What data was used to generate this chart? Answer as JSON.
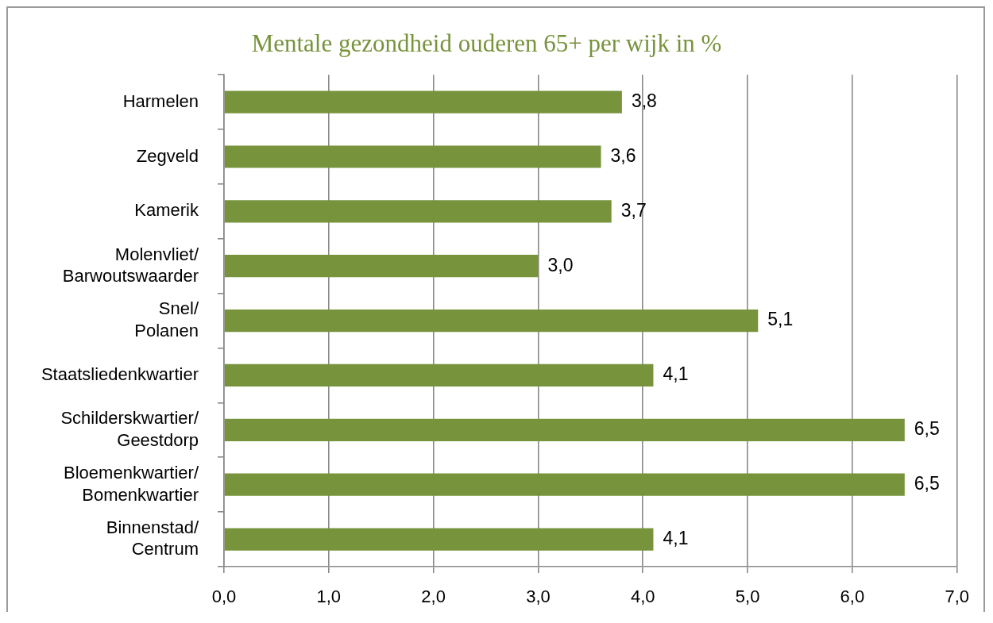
{
  "chart_data": {
    "type": "bar",
    "orientation": "horizontal",
    "title": "Mentale gezondheid ouderen 65+ per wijk in %",
    "categories": [
      "Harmelen",
      "Zegveld",
      "Kamerik",
      "Molenvliet/\nBarwoutswaarder",
      "Snel/\nPolanen",
      "Staatsliedenkwartier",
      "Schilderskwartier/\nGeestdorp",
      "Bloemenkwartier/\nBomenkwartier",
      "Binnenstad/\nCentrum"
    ],
    "values": [
      3.8,
      3.6,
      3.7,
      3.0,
      5.1,
      4.1,
      6.5,
      6.5,
      4.1
    ],
    "value_labels": [
      "3,8",
      "3,6",
      "3,7",
      "3,0",
      "5,1",
      "4,1",
      "6,5",
      "6,5",
      "4,1"
    ],
    "color": "#77933c",
    "xlim": [
      0,
      7
    ],
    "xticks": [
      {
        "value": 0,
        "label": "0,0"
      },
      {
        "value": 1,
        "label": "1,0"
      },
      {
        "value": 2,
        "label": "2,0"
      },
      {
        "value": 3,
        "label": "3,0"
      },
      {
        "value": 4,
        "label": "4,0"
      },
      {
        "value": 5,
        "label": "5,0"
      },
      {
        "value": 6,
        "label": "6,0"
      },
      {
        "value": 7,
        "label": "7,0"
      }
    ],
    "grid": "x"
  }
}
